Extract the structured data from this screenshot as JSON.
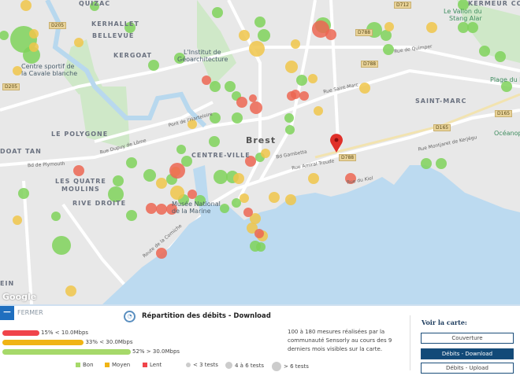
{
  "map": {
    "districts": [
      "QUIZAC",
      "KERHALLET",
      "BELLEVUE",
      "KERGOAT",
      "LE POLYGONE",
      "DOAT TAN",
      "LES QUATRE",
      "MOULINS",
      "RIVE DROITE",
      "CENTRE-VILLE",
      "SAINT-MARC",
      "KERMEUR COATAU",
      "EIN"
    ],
    "city": "Brest",
    "pois": [
      "Centre sportif de",
      "la Cavale blanche",
      "L'Institut de",
      "Géoarchitecture",
      "Musée National",
      "de la Marine",
      "Le Vallon du",
      "Stang Alar",
      "Plage du Mo",
      "Océanop"
    ],
    "streets": [
      "Rue de Quimper",
      "Rue Saint-Marc",
      "Bd Gambetta",
      "Rue Amiral Troude",
      "Rue du Kiel",
      "Rue Dupuy de Lôme",
      "Pont de l'Harteloire",
      "Bd de Plymouth",
      "Route de la Corniche",
      "Rue Montjaret de Kerjégu"
    ],
    "road_badges": [
      "D205",
      "D205",
      "D712",
      "D788",
      "D788",
      "D788",
      "D165",
      "D165"
    ],
    "attribution": "Google",
    "marker_colors": {
      "bon": "#7fd25a",
      "moyen": "#f0c64a",
      "lent": "#ec6652"
    }
  },
  "panel": {
    "close_label": "FERMER",
    "title": "Répartition des débits - Download",
    "bars": [
      {
        "percent": 15,
        "label": "15% < 10.0Mbps",
        "color": "#f0444a"
      },
      {
        "percent": 33,
        "label": "33% < 30.0Mbps",
        "color": "#f0b414"
      },
      {
        "percent": 52,
        "label": "52% > 30.0Mbps",
        "color": "#a6d96a"
      }
    ],
    "legend": {
      "bon": "Bon",
      "moyen": "Moyen",
      "lent": "Lent",
      "small": "< 3 tests",
      "medium": "4 à 6 tests",
      "large": "> 6 tests"
    },
    "description": "100 à 180 mesures réalisées par la communauté Sensorly au cours des 9 derniers mois visibles sur la carte.",
    "view": {
      "heading": "Voir la carte:",
      "buttons": [
        "Couverture",
        "Débits - Download",
        "Débits - Upload"
      ],
      "active": "Débits - Download"
    }
  }
}
